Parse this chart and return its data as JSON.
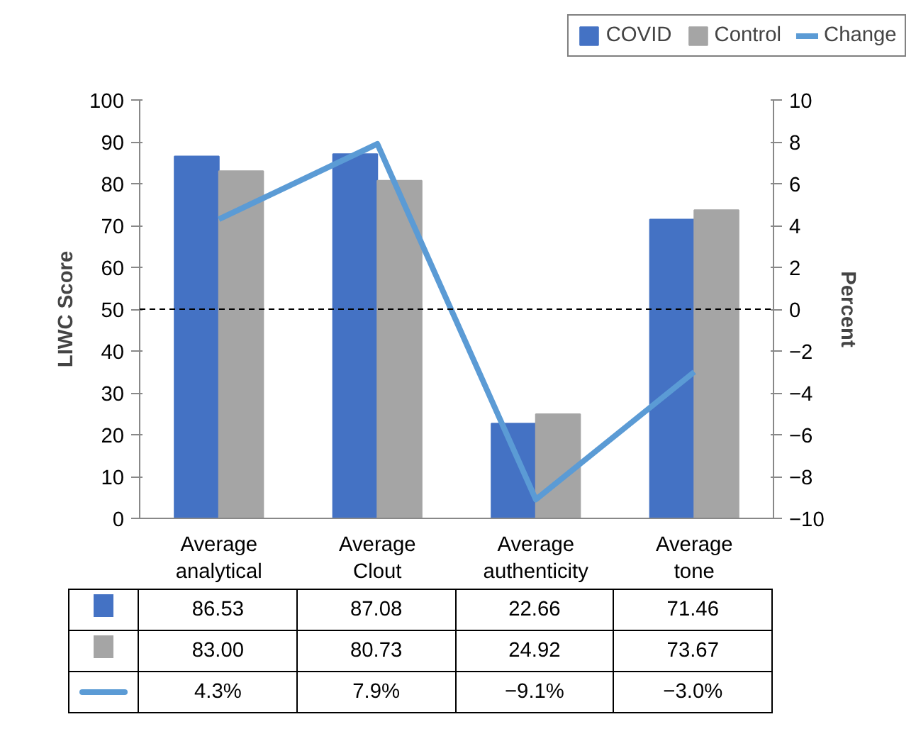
{
  "chart_data": {
    "type": "bar",
    "categories": [
      "Average\nanalytical",
      "Average\nClout",
      "Average\nauthenticity",
      "Average\ntone"
    ],
    "series": [
      {
        "name": "COVID",
        "color": "#4472c4",
        "values": [
          86.53,
          87.08,
          22.66,
          71.46
        ],
        "value_labels": [
          "86.53",
          "87.08",
          "22.66",
          "71.46"
        ]
      },
      {
        "name": "Control",
        "color": "#a5a5a5",
        "values": [
          83.0,
          80.73,
          24.92,
          73.67
        ],
        "value_labels": [
          "83.00",
          "80.73",
          "24.92",
          "73.67"
        ]
      },
      {
        "name": "Change",
        "type": "line",
        "axis": "y2",
        "color": "#5b9bd5",
        "values": [
          4.3,
          7.9,
          -9.1,
          -3.0
        ],
        "value_labels": [
          "4.3%",
          "7.9%",
          "−9.1%",
          "−3.0%"
        ]
      }
    ],
    "ylabel": "LIWC Score",
    "y2label": "Percent",
    "ylim": [
      0,
      100
    ],
    "yticks": [
      0,
      10,
      20,
      30,
      40,
      50,
      60,
      70,
      80,
      90,
      100
    ],
    "y2lim": [
      -10,
      10
    ],
    "y2ticks": [
      {
        "value": -10,
        "label": "−10"
      },
      {
        "value": -8,
        "label": "−8"
      },
      {
        "value": -6,
        "label": "−6"
      },
      {
        "value": -4,
        "label": "−4"
      },
      {
        "value": -2,
        "label": "−2"
      },
      0,
      2,
      4,
      6,
      8,
      10
    ],
    "ref_lines": [
      {
        "axis": "y2",
        "value": 0,
        "color": "#000000",
        "line_style": "dashed"
      }
    ],
    "legend": "top right"
  }
}
